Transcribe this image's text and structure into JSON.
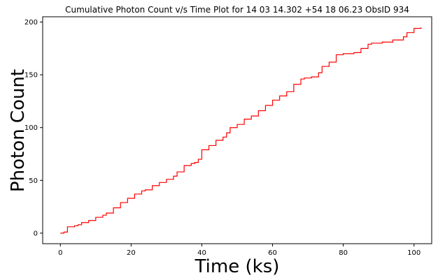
{
  "chart_data": {
    "type": "line",
    "title": "Cumulative Photon Count v/s Time Plot for 14 03 14.302 +54 18 06.23 ObsID 934",
    "xlabel": "Time (ks)",
    "ylabel": "Photon Count",
    "xlim": [
      -5,
      105
    ],
    "ylim": [
      -10,
      205
    ],
    "x_ticks": [
      0,
      20,
      40,
      60,
      80,
      100
    ],
    "y_ticks": [
      0,
      50,
      100,
      150,
      200
    ],
    "grid": false,
    "legend": "none",
    "series": [
      {
        "color": "#ff0000",
        "x": [
          0,
          1,
          2,
          4,
          5,
          6,
          8,
          10,
          12,
          13,
          15,
          17,
          19,
          21,
          23,
          24,
          26,
          28,
          30,
          32,
          33,
          35,
          37,
          38,
          39,
          40,
          42,
          44,
          46,
          47,
          48,
          50,
          52,
          54,
          56,
          58,
          60,
          62,
          64,
          66,
          68,
          69,
          71,
          73,
          74,
          76,
          78,
          80,
          83,
          85,
          87,
          88,
          91,
          94,
          97,
          98,
          100,
          102
        ],
        "y": [
          0,
          1,
          6,
          7,
          8,
          10,
          12,
          15,
          17,
          19,
          24,
          29,
          33,
          37,
          40,
          41,
          45,
          48,
          51,
          54,
          58,
          64,
          66,
          67,
          70,
          79,
          83,
          88,
          91,
          95,
          100,
          103,
          108,
          111,
          116,
          121,
          126,
          130,
          134,
          141,
          146,
          147,
          148,
          152,
          158,
          162,
          169,
          170,
          171,
          175,
          179,
          180,
          181,
          183,
          186,
          190,
          194,
          195
        ]
      }
    ]
  }
}
